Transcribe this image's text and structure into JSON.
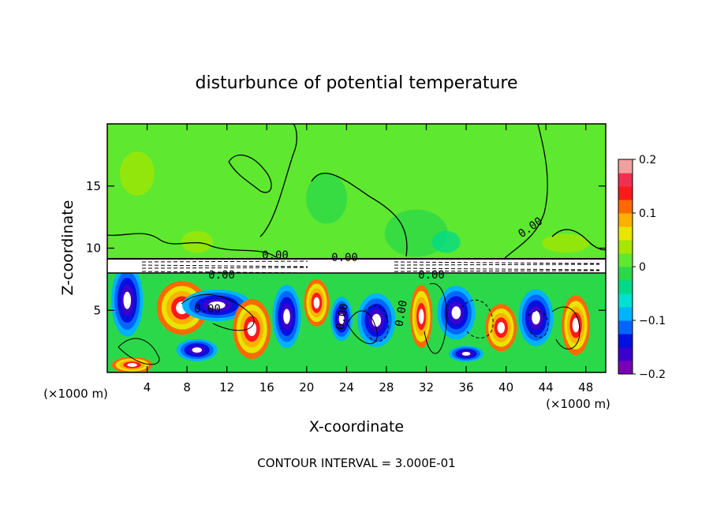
{
  "chart_data": {
    "type": "heatmap",
    "title": "disturbunce of potential temperature",
    "xlabel": "X-coordinate",
    "ylabel": "Z-coordinate",
    "x_unit": "(×1000 m)",
    "x_unit_right": "(×1000 m)",
    "footer": "CONTOUR INTERVAL = 3.000E-01",
    "xlim": [
      0,
      50
    ],
    "ylim": [
      0,
      20
    ],
    "x_ticks": [
      "4",
      "8",
      "12",
      "16",
      "20",
      "24",
      "28",
      "32",
      "36",
      "40",
      "44",
      "48"
    ],
    "y_ticks": [
      "5",
      "10",
      "15"
    ],
    "colorbar": {
      "min": -0.2,
      "max": 0.2,
      "tick_labels": [
        "0.2",
        "0.1",
        "0",
        "−0.1",
        "−0.2"
      ],
      "colors": [
        "#7a00b8",
        "#3a00cc",
        "#0010e0",
        "#0066ff",
        "#00b3ff",
        "#00e0d0",
        "#00d98a",
        "#2bd84a",
        "#5ee830",
        "#a6e600",
        "#e6e600",
        "#ffb000",
        "#ff6a00",
        "#ff1a1a",
        "#f03050",
        "#f4a0a0"
      ]
    },
    "contour_labels": [
      "0.00",
      "0.00",
      "0.00",
      "0.00",
      "0.00",
      "0.00",
      "0.00",
      "0.00"
    ],
    "grid": false
  }
}
